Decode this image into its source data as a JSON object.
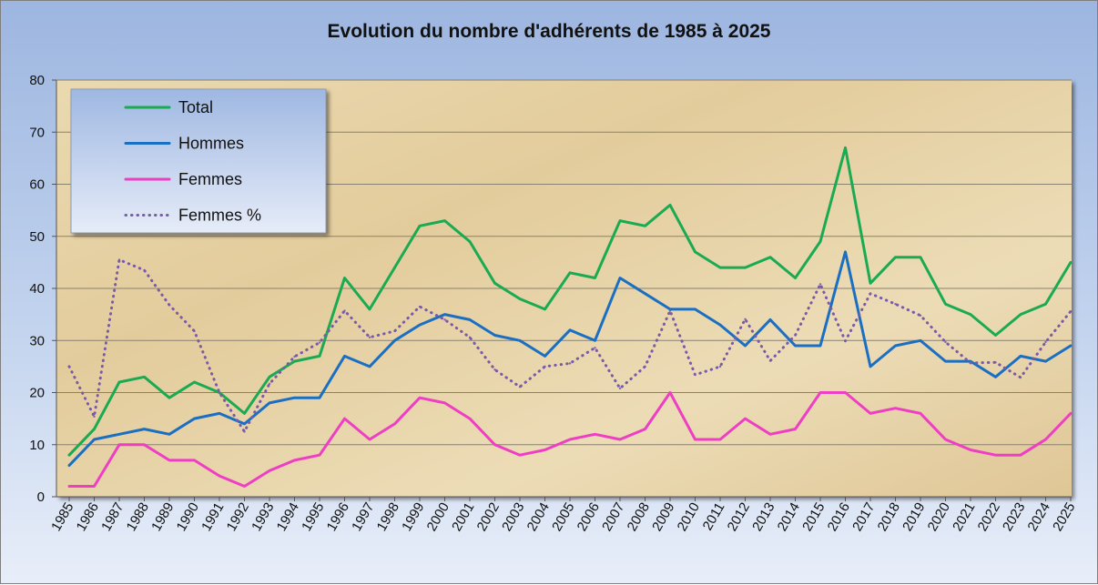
{
  "chart_data": {
    "type": "line",
    "title": "Evolution du nombre d'adhérents de 1985 à 2025",
    "xlabel": "",
    "ylabel": "",
    "ylim": [
      0,
      80
    ],
    "yticks": [
      0,
      10,
      20,
      30,
      40,
      50,
      60,
      70,
      80
    ],
    "grid": true,
    "legend_position": "top-left",
    "categories": [
      "1985",
      "1986",
      "1987",
      "1988",
      "1989",
      "1990",
      "1991",
      "1992",
      "1993",
      "1994",
      "1995",
      "1996",
      "1997",
      "1998",
      "1999",
      "2000",
      "2001",
      "2002",
      "2003",
      "2004",
      "2005",
      "2006",
      "2007",
      "2008",
      "2009",
      "2010",
      "2011",
      "2012",
      "2013",
      "2014",
      "2015",
      "2016",
      "2017",
      "2018",
      "2019",
      "2020",
      "2021",
      "2022",
      "2023",
      "2024",
      "2025"
    ],
    "series": [
      {
        "name": "Total",
        "color": "#1aaa52",
        "style": "solid",
        "values": [
          8,
          13,
          22,
          23,
          19,
          22,
          20,
          16,
          23,
          26,
          27,
          42,
          36,
          44,
          52,
          53,
          49,
          41,
          38,
          36,
          43,
          42,
          53,
          52,
          56,
          47,
          44,
          44,
          46,
          42,
          49,
          67,
          41,
          46,
          46,
          37,
          35,
          31,
          35,
          37,
          45
        ]
      },
      {
        "name": "Hommes",
        "color": "#1a6fc2",
        "style": "solid",
        "values": [
          6,
          11,
          12,
          13,
          12,
          15,
          16,
          14,
          18,
          19,
          19,
          27,
          25,
          30,
          33,
          35,
          34,
          31,
          30,
          27,
          32,
          30,
          42,
          39,
          36,
          36,
          33,
          29,
          34,
          29,
          29,
          47,
          25,
          29,
          30,
          26,
          26,
          23,
          27,
          26,
          29
        ]
      },
      {
        "name": "Femmes",
        "color": "#ee3fc4",
        "style": "solid",
        "values": [
          2,
          2,
          10,
          10,
          7,
          7,
          4,
          2,
          5,
          7,
          8,
          15,
          11,
          14,
          19,
          18,
          15,
          10,
          8,
          9,
          11,
          12,
          11,
          13,
          20,
          11,
          11,
          15,
          12,
          13,
          20,
          20,
          16,
          17,
          16,
          11,
          9,
          8,
          8,
          11,
          16
        ]
      },
      {
        "name": "Femmes %",
        "color": "#7a5aa8",
        "style": "dotted",
        "values": [
          25,
          15.4,
          45.5,
          43.5,
          36.8,
          31.8,
          20,
          12.5,
          21.7,
          26.9,
          29.6,
          35.7,
          30.6,
          31.8,
          36.5,
          34,
          30.6,
          24.4,
          21.1,
          25,
          25.6,
          28.6,
          20.8,
          25,
          35.7,
          23.4,
          25,
          34.1,
          26.1,
          31,
          40.8,
          29.9,
          39,
          37,
          34.8,
          29.7,
          25.7,
          25.8,
          22.9,
          29.7,
          35.6
        ]
      }
    ]
  }
}
